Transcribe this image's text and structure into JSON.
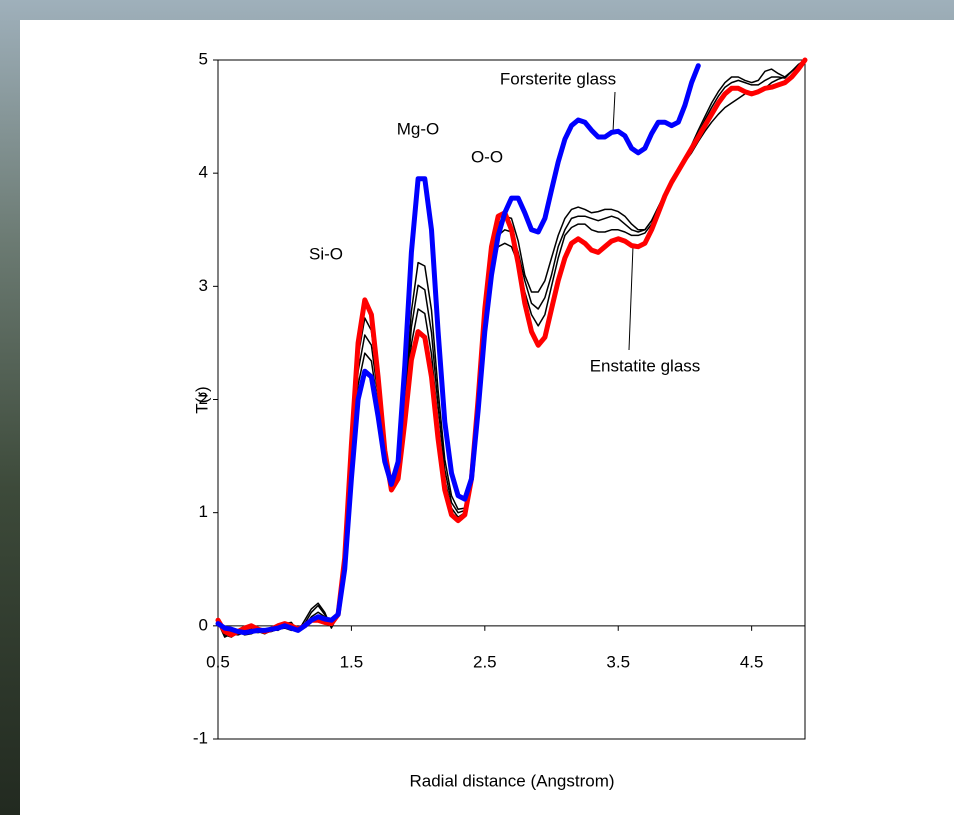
{
  "chart_data": {
    "type": "line",
    "x_label": "Radial distance (Angstrom)",
    "y_label": "T(r)",
    "xlim": [
      0.5,
      4.9
    ],
    "ylim": [
      -1,
      5
    ],
    "xticks": [
      0.5,
      1.5,
      2.5,
      3.5,
      4.5
    ],
    "yticks": [
      -1,
      0,
      1,
      2,
      3,
      4,
      5
    ],
    "annotations": [
      "Si-O",
      "Mg-O",
      "O-O",
      "Forsterite glass",
      "Enstatite glass"
    ],
    "x": [
      0.5,
      0.55,
      0.6,
      0.65,
      0.7,
      0.75,
      0.8,
      0.85,
      0.9,
      0.95,
      1.0,
      1.05,
      1.1,
      1.15,
      1.2,
      1.25,
      1.3,
      1.35,
      1.4,
      1.45,
      1.5,
      1.55,
      1.6,
      1.65,
      1.7,
      1.75,
      1.8,
      1.85,
      1.9,
      1.95,
      2.0,
      2.05,
      2.1,
      2.15,
      2.2,
      2.25,
      2.3,
      2.35,
      2.4,
      2.45,
      2.5,
      2.55,
      2.6,
      2.65,
      2.7,
      2.75,
      2.8,
      2.85,
      2.9,
      2.95,
      3.0,
      3.05,
      3.1,
      3.15,
      3.2,
      3.25,
      3.3,
      3.35,
      3.4,
      3.45,
      3.5,
      3.55,
      3.6,
      3.65,
      3.7,
      3.75,
      3.8,
      3.85,
      3.9,
      3.95,
      4.0,
      4.05,
      4.1,
      4.15,
      4.2,
      4.25,
      4.3,
      4.35,
      4.4,
      4.45,
      4.5,
      4.55,
      4.6,
      4.65,
      4.7,
      4.75,
      4.8,
      4.85,
      4.9
    ],
    "series": [
      {
        "color": "#000000",
        "values": [
          0.04,
          -0.08,
          -0.1,
          -0.06,
          -0.04,
          -0.03,
          -0.05,
          -0.07,
          -0.04,
          -0.02,
          0.02,
          0.03,
          -0.05,
          0.05,
          0.15,
          0.2,
          0.12,
          -0.02,
          0.1,
          0.58,
          1.52,
          2.38,
          2.72,
          2.61,
          2.11,
          1.53,
          1.21,
          1.34,
          1.88,
          2.49,
          2.8,
          2.76,
          2.4,
          1.79,
          1.29,
          1.04,
          0.96,
          1.0,
          1.3,
          2.0,
          2.75,
          3.3,
          3.55,
          3.62,
          3.6,
          3.4,
          3.1,
          2.95,
          2.95,
          3.05,
          3.25,
          3.45,
          3.6,
          3.68,
          3.7,
          3.68,
          3.65,
          3.66,
          3.68,
          3.68,
          3.66,
          3.62,
          3.55,
          3.5,
          3.5,
          3.58,
          3.7,
          3.82,
          3.92,
          4.02,
          4.13,
          4.25,
          4.38,
          4.5,
          4.62,
          4.72,
          4.8,
          4.85,
          4.85,
          4.82,
          4.8,
          4.82,
          4.9,
          4.92,
          4.88,
          4.85,
          4.9,
          4.96,
          5.0
        ]
      },
      {
        "color": "#000000",
        "values": [
          0.03,
          -0.1,
          -0.07,
          -0.08,
          -0.06,
          -0.05,
          -0.06,
          -0.05,
          -0.03,
          -0.04,
          0.0,
          0.0,
          -0.04,
          0.02,
          0.12,
          0.18,
          0.1,
          0.0,
          0.1,
          0.55,
          1.45,
          2.25,
          2.57,
          2.48,
          2.03,
          1.5,
          1.23,
          1.38,
          1.95,
          2.64,
          3.01,
          2.97,
          2.59,
          1.94,
          1.38,
          1.09,
          1.0,
          1.02,
          1.3,
          1.98,
          2.7,
          3.22,
          3.45,
          3.5,
          3.48,
          3.3,
          3.05,
          2.85,
          2.8,
          2.9,
          3.1,
          3.35,
          3.5,
          3.6,
          3.62,
          3.62,
          3.6,
          3.58,
          3.6,
          3.62,
          3.6,
          3.55,
          3.5,
          3.48,
          3.5,
          3.58,
          3.7,
          3.82,
          3.92,
          4.02,
          4.12,
          4.22,
          4.35,
          4.47,
          4.58,
          4.68,
          4.76,
          4.8,
          4.82,
          4.8,
          4.78,
          4.78,
          4.82,
          4.85,
          4.85,
          4.84,
          4.9,
          4.95,
          5.0
        ]
      },
      {
        "color": "#000000",
        "values": [
          0.03,
          -0.06,
          -0.05,
          -0.05,
          -0.08,
          -0.07,
          -0.04,
          -0.06,
          -0.05,
          -0.03,
          -0.02,
          -0.04,
          -0.02,
          0.0,
          0.08,
          0.12,
          0.08,
          0.03,
          0.1,
          0.53,
          1.38,
          2.13,
          2.41,
          2.34,
          1.94,
          1.48,
          1.24,
          1.41,
          2.03,
          2.78,
          3.21,
          3.18,
          2.79,
          2.08,
          1.47,
          1.15,
          1.03,
          1.04,
          1.3,
          1.95,
          2.65,
          3.15,
          3.35,
          3.38,
          3.35,
          3.2,
          2.95,
          2.75,
          2.65,
          2.75,
          3.0,
          3.25,
          3.45,
          3.52,
          3.55,
          3.55,
          3.5,
          3.48,
          3.48,
          3.5,
          3.5,
          3.48,
          3.45,
          3.45,
          3.47,
          3.55,
          3.68,
          3.8,
          3.9,
          4.0,
          4.1,
          4.18,
          4.28,
          4.37,
          4.45,
          4.52,
          4.58,
          4.62,
          4.66,
          4.7,
          4.72,
          4.72,
          4.75,
          4.8,
          4.83,
          4.85,
          4.9,
          4.95,
          5.0
        ]
      },
      {
        "color": "#ff0000",
        "values": [
          0.05,
          -0.05,
          -0.08,
          -0.05,
          -0.02,
          0.0,
          -0.03,
          -0.05,
          -0.03,
          0.0,
          0.02,
          0.0,
          -0.03,
          0.0,
          0.05,
          0.05,
          0.03,
          0.02,
          0.1,
          0.6,
          1.6,
          2.5,
          2.88,
          2.75,
          2.2,
          1.55,
          1.2,
          1.3,
          1.8,
          2.35,
          2.6,
          2.55,
          2.2,
          1.65,
          1.2,
          0.98,
          0.93,
          0.98,
          1.3,
          2.0,
          2.8,
          3.35,
          3.62,
          3.65,
          3.5,
          3.2,
          2.85,
          2.6,
          2.48,
          2.55,
          2.8,
          3.05,
          3.25,
          3.38,
          3.42,
          3.38,
          3.32,
          3.3,
          3.35,
          3.4,
          3.42,
          3.4,
          3.36,
          3.35,
          3.38,
          3.5,
          3.65,
          3.8,
          3.92,
          4.02,
          4.12,
          4.22,
          4.32,
          4.42,
          4.52,
          4.62,
          4.7,
          4.75,
          4.75,
          4.72,
          4.7,
          4.72,
          4.75,
          4.76,
          4.78,
          4.8,
          4.85,
          4.92,
          5.0
        ]
      },
      {
        "color": "#0000ff",
        "values": [
          0.02,
          -0.02,
          -0.03,
          -0.05,
          -0.06,
          -0.05,
          -0.04,
          -0.04,
          -0.03,
          -0.02,
          0.0,
          -0.02,
          -0.04,
          0.0,
          0.05,
          0.08,
          0.06,
          0.05,
          0.1,
          0.5,
          1.3,
          2.0,
          2.25,
          2.2,
          1.85,
          1.45,
          1.25,
          1.45,
          2.3,
          3.3,
          3.95,
          3.95,
          3.5,
          2.6,
          1.8,
          1.35,
          1.15,
          1.12,
          1.3,
          1.9,
          2.6,
          3.1,
          3.45,
          3.65,
          3.78,
          3.78,
          3.65,
          3.5,
          3.48,
          3.6,
          3.85,
          4.1,
          4.3,
          4.42,
          4.47,
          4.45,
          4.38,
          4.32,
          4.32,
          4.36,
          4.37,
          4.33,
          4.22,
          4.18,
          4.22,
          4.35,
          4.45,
          4.45,
          4.42,
          4.45,
          4.6,
          4.8,
          4.95,
          null,
          null,
          null,
          null,
          null,
          null,
          null,
          null,
          null,
          null,
          null,
          null,
          null,
          null,
          null,
          null
        ]
      }
    ]
  }
}
